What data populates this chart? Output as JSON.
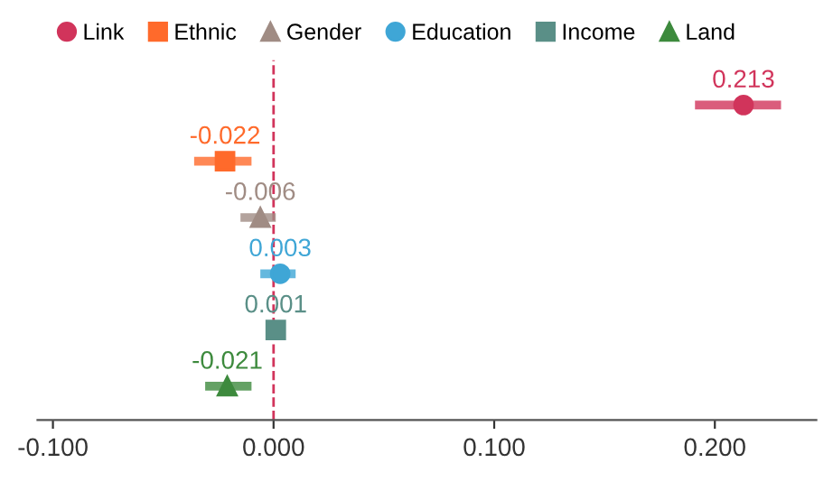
{
  "chart_data": {
    "type": "scatter",
    "orientation": "horizontal",
    "categories": [
      null,
      null,
      null,
      null,
      null,
      null
    ],
    "series": [
      {
        "name": "Link",
        "color": "#d1345b",
        "marker": "circle",
        "values": [
          0.213,
          null,
          null,
          null,
          null,
          null
        ],
        "errors": [
          [
            0.191,
            0.23
          ],
          null,
          null,
          null,
          null,
          null
        ]
      },
      {
        "name": "Ethnic",
        "color": "#ff6a2b",
        "marker": "square",
        "values": [
          null,
          -0.022,
          null,
          null,
          null,
          null
        ],
        "errors": [
          null,
          [
            -0.036,
            -0.01
          ],
          null,
          null,
          null,
          null
        ]
      },
      {
        "name": "Gender",
        "color": "#a08c84",
        "marker": "triangle",
        "values": [
          null,
          null,
          -0.006,
          null,
          null,
          null
        ],
        "errors": [
          null,
          null,
          [
            -0.015,
            0.001
          ],
          null,
          null,
          null
        ]
      },
      {
        "name": "Education",
        "color": "#3fa6d6",
        "marker": "circle",
        "values": [
          null,
          null,
          null,
          0.003,
          null,
          null
        ],
        "errors": [
          null,
          null,
          null,
          [
            -0.006,
            0.01
          ],
          null,
          null
        ]
      },
      {
        "name": "Income",
        "color": "#5a8f87",
        "marker": "square",
        "values": [
          null,
          null,
          null,
          null,
          0.001,
          null
        ],
        "errors": [
          null,
          null,
          null,
          null,
          [
            -0.003,
            0.005
          ],
          null
        ]
      },
      {
        "name": "Land",
        "color": "#3d8a3d",
        "marker": "triangle",
        "values": [
          null,
          null,
          null,
          null,
          null,
          -0.021
        ],
        "errors": [
          null,
          null,
          null,
          null,
          null,
          [
            -0.031,
            -0.01
          ]
        ]
      }
    ],
    "xlim": [
      -0.107,
      0.246
    ],
    "xticks": [
      {
        "value": -0.1,
        "label": "-0.100"
      },
      {
        "value": 0,
        "label": "0.000"
      },
      {
        "value": 0.1,
        "label": "0.100"
      },
      {
        "value": 0.2,
        "label": "0.200"
      }
    ],
    "ref_lines": [
      {
        "axis": "x",
        "value": 0,
        "color": "#d1345b",
        "line_style": "dashed"
      }
    ],
    "data_labels": true,
    "legend": "top",
    "grid": false,
    "tick_labels": "x"
  }
}
